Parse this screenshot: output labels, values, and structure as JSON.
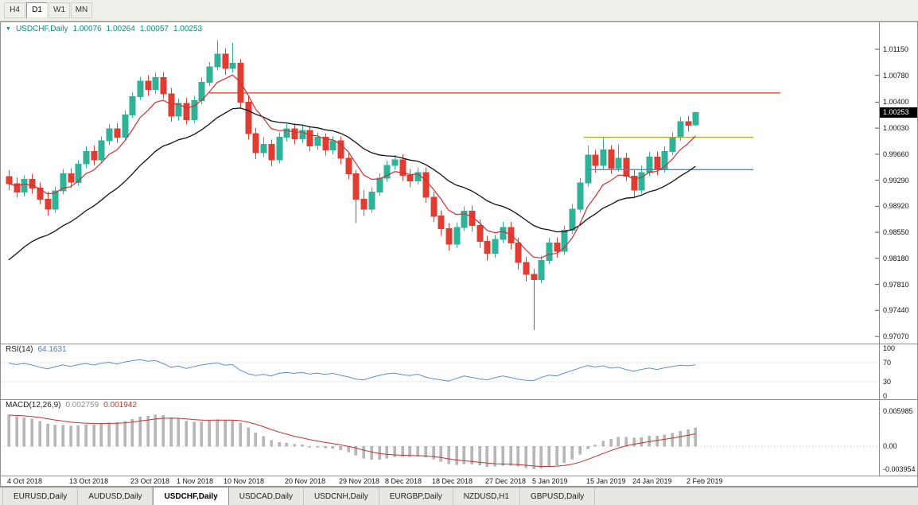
{
  "toolbar": {
    "timeframes": [
      "H4",
      "D1",
      "W1",
      "MN"
    ],
    "active": "D1"
  },
  "chart_header": {
    "dropdown_icon": "▼",
    "symbol": "USDCHF,Daily",
    "open": "1.00076",
    "high": "1.00264",
    "low": "1.00057",
    "close": "1.00253"
  },
  "symbol_tabs": [
    {
      "label": "EURUSD,Daily",
      "active": false
    },
    {
      "label": "AUDUSD,Daily",
      "active": false
    },
    {
      "label": "USDCHF,Daily",
      "active": true
    },
    {
      "label": "USDCAD,Daily",
      "active": false
    },
    {
      "label": "USDCNH,Daily",
      "active": false
    },
    {
      "label": "EURGBP,Daily",
      "active": false
    },
    {
      "label": "NZDUSD,H1",
      "active": false
    },
    {
      "label": "GBPUSD,Daily",
      "active": false
    }
  ],
  "colors": {
    "bull": "#2eb398",
    "bear": "#e03c31",
    "ma_fast": "#d03030",
    "ma_slow": "#101018",
    "rsi_line": "#5b8fc9",
    "macd_hist": "#b8b8b8",
    "macd_signal": "#c23232",
    "price_tag_bg": "#000000"
  },
  "chart_data": {
    "type": "candlestick",
    "symbol": "USDCHF",
    "timeframe": "Daily",
    "current_ohlc": {
      "open": 1.00076,
      "high": 1.00264,
      "low": 1.00057,
      "close": 1.00253
    },
    "current_price": "1.00253",
    "y_axis_range": [
      0.9707,
      1.0115
    ],
    "price_ticks": [
      "1.01150",
      "1.00780",
      "1.00400",
      "1.00030",
      "0.99660",
      "0.99290",
      "0.98920",
      "0.98550",
      "0.98180",
      "0.97810",
      "0.97440",
      "0.97070"
    ],
    "date_ticks": [
      {
        "label": "4 Oct 2018",
        "bar": 0
      },
      {
        "label": "13 Oct 2018",
        "bar": 8
      },
      {
        "label": "23 Oct 2018",
        "bar": 16
      },
      {
        "label": "1 Nov 2018",
        "bar": 22
      },
      {
        "label": "10 Nov 2018",
        "bar": 28
      },
      {
        "label": "20 Nov 2018",
        "bar": 36
      },
      {
        "label": "29 Nov 2018",
        "bar": 43
      },
      {
        "label": "8 Dec 2018",
        "bar": 49
      },
      {
        "label": "18 Dec 2018",
        "bar": 55
      },
      {
        "label": "27 Dec 2018",
        "bar": 62
      },
      {
        "label": "5 Jan 2019",
        "bar": 68
      },
      {
        "label": "15 Jan 2019",
        "bar": 75
      },
      {
        "label": "24 Jan 2019",
        "bar": 81
      },
      {
        "label": "2 Feb 2019",
        "bar": 88
      }
    ],
    "hlines": [
      {
        "name": "resistance-line-red",
        "price": 1.0053,
        "color": "#e0372c",
        "from_bar": 26,
        "to_bar": 100
      },
      {
        "name": "minor-resistance-line-olive",
        "price": 0.999,
        "color": "#a7ab25",
        "from_bar": 74.5,
        "to_bar": 96.5
      },
      {
        "name": "support-line-blue",
        "price": 0.9944,
        "color": "#3e8ed0",
        "from_bar": 75,
        "to_bar": 96.5
      }
    ],
    "moving_averages": [
      {
        "name": "ma-fast-red",
        "period": 7,
        "color": "#d03030"
      },
      {
        "name": "ma-slow-black",
        "period": 21,
        "color": "#101018"
      }
    ],
    "rsi": {
      "label": "RSI(14)",
      "value": "64.1631",
      "period": 14,
      "axis_ticks": [
        "100",
        "70",
        "30",
        "0"
      ],
      "dotted_levels": [
        70,
        30
      ]
    },
    "macd": {
      "label": "MACD(12,26,9)",
      "main_value": "0.002759",
      "signal_value": "0.001942",
      "fast": 12,
      "slow": 26,
      "signal": 9,
      "axis_ticks": [
        "0.005985",
        "0.00",
        "-0.003954"
      ]
    },
    "candles": [
      [
        0.9934,
        0.9943,
        0.9915,
        0.9924
      ],
      [
        0.9924,
        0.9933,
        0.9904,
        0.9912
      ],
      [
        0.9912,
        0.9936,
        0.9906,
        0.993
      ],
      [
        0.993,
        0.9938,
        0.991,
        0.9918
      ],
      [
        0.9918,
        0.9926,
        0.9895,
        0.9902
      ],
      [
        0.9902,
        0.9913,
        0.9879,
        0.9888
      ],
      [
        0.9888,
        0.992,
        0.9883,
        0.9914
      ],
      [
        0.9914,
        0.9945,
        0.9909,
        0.9938
      ],
      [
        0.9938,
        0.9946,
        0.9918,
        0.9926
      ],
      [
        0.9926,
        0.9958,
        0.9921,
        0.9952
      ],
      [
        0.9952,
        0.9977,
        0.9946,
        0.997
      ],
      [
        0.997,
        0.9978,
        0.995,
        0.9958
      ],
      [
        0.9958,
        0.9991,
        0.9953,
        0.9985
      ],
      [
        0.9985,
        1.0009,
        0.9979,
        1.0002
      ],
      [
        1.0002,
        1.001,
        0.9982,
        0.999
      ],
      [
        0.999,
        1.0028,
        0.9985,
        1.0022
      ],
      [
        1.0022,
        1.0054,
        1.0017,
        1.0048
      ],
      [
        1.0048,
        1.0076,
        1.0043,
        1.007
      ],
      [
        1.007,
        1.0078,
        1.0049,
        1.0058
      ],
      [
        1.0058,
        1.0082,
        1.0052,
        1.0075
      ],
      [
        1.0075,
        1.0083,
        1.0045,
        1.0052
      ],
      [
        1.0052,
        1.006,
        1.0012,
        1.002
      ],
      [
        1.002,
        1.0045,
        1.0014,
        1.0038
      ],
      [
        1.0038,
        1.0046,
        1.0008,
        1.0015
      ],
      [
        1.0015,
        1.0049,
        1.001,
        1.0042
      ],
      [
        1.0042,
        1.0075,
        1.0037,
        1.0068
      ],
      [
        1.0068,
        1.0097,
        1.0063,
        1.009
      ],
      [
        1.009,
        1.0128,
        1.0085,
        1.0108
      ],
      [
        1.0108,
        1.0116,
        1.0079,
        1.0088
      ],
      [
        1.0088,
        1.0124,
        1.0082,
        1.0095
      ],
      [
        1.0095,
        1.0101,
        1.0031,
        1.004
      ],
      [
        1.004,
        1.0048,
        0.9987,
        0.9995
      ],
      [
        0.9995,
        1.0003,
        0.9959,
        0.9968
      ],
      [
        0.9968,
        0.999,
        0.9962,
        0.998
      ],
      [
        0.998,
        0.9987,
        0.9949,
        0.9958
      ],
      [
        0.9958,
        0.9997,
        0.9953,
        0.999
      ],
      [
        0.999,
        1.0009,
        0.9984,
        1.0002
      ],
      [
        1.0002,
        1.001,
        0.998,
        0.9988
      ],
      [
        0.9988,
        1.0007,
        0.9982,
        1.0
      ],
      [
        1.0,
        1.0006,
        0.997,
        0.9978
      ],
      [
        0.9978,
        0.9997,
        0.9972,
        0.999
      ],
      [
        0.999,
        0.9996,
        0.9964,
        0.9972
      ],
      [
        0.9972,
        0.9992,
        0.9966,
        0.9985
      ],
      [
        0.9985,
        0.9991,
        0.9952,
        0.996
      ],
      [
        0.996,
        0.9968,
        0.993,
        0.9938
      ],
      [
        0.9938,
        0.9944,
        0.9868,
        0.9902
      ],
      [
        0.9902,
        0.9915,
        0.9879,
        0.9888
      ],
      [
        0.9888,
        0.9919,
        0.9883,
        0.9912
      ],
      [
        0.9912,
        0.9939,
        0.9907,
        0.9932
      ],
      [
        0.9932,
        0.9957,
        0.9927,
        0.995
      ],
      [
        0.995,
        0.9965,
        0.9944,
        0.9958
      ],
      [
        0.9958,
        0.9966,
        0.9928,
        0.9936
      ],
      [
        0.9936,
        0.9945,
        0.9919,
        0.9928
      ],
      [
        0.9928,
        0.9947,
        0.9923,
        0.994
      ],
      [
        0.994,
        0.9947,
        0.9897,
        0.9905
      ],
      [
        0.9905,
        0.9913,
        0.987,
        0.9878
      ],
      [
        0.9878,
        0.9886,
        0.985,
        0.986
      ],
      [
        0.986,
        0.9868,
        0.9829,
        0.9838
      ],
      [
        0.9838,
        0.9869,
        0.9833,
        0.9862
      ],
      [
        0.9862,
        0.9892,
        0.9857,
        0.9885
      ],
      [
        0.9885,
        0.9893,
        0.9856,
        0.9865
      ],
      [
        0.9865,
        0.9873,
        0.9833,
        0.9842
      ],
      [
        0.9842,
        0.985,
        0.9815,
        0.9825
      ],
      [
        0.9825,
        0.9852,
        0.9819,
        0.9845
      ],
      [
        0.9845,
        0.987,
        0.984,
        0.9862
      ],
      [
        0.9862,
        0.987,
        0.9831,
        0.984
      ],
      [
        0.984,
        0.9847,
        0.9802,
        0.9812
      ],
      [
        0.9812,
        0.982,
        0.9785,
        0.9795
      ],
      [
        0.9795,
        0.9803,
        0.9716,
        0.9788
      ],
      [
        0.9788,
        0.9822,
        0.9783,
        0.9815
      ],
      [
        0.9815,
        0.9847,
        0.981,
        0.984
      ],
      [
        0.984,
        0.9848,
        0.9819,
        0.9828
      ],
      [
        0.9828,
        0.9865,
        0.9823,
        0.9858
      ],
      [
        0.9858,
        0.9895,
        0.9853,
        0.9888
      ],
      [
        0.9888,
        0.9932,
        0.9883,
        0.9925
      ],
      [
        0.9925,
        0.9978,
        0.992,
        0.9965
      ],
      [
        0.9965,
        0.9972,
        0.994,
        0.995
      ],
      [
        0.995,
        0.9989,
        0.9945,
        0.9972
      ],
      [
        0.9972,
        0.9979,
        0.9938,
        0.9946
      ],
      [
        0.9946,
        0.998,
        0.9941,
        0.996
      ],
      [
        0.996,
        0.9968,
        0.9928,
        0.9935
      ],
      [
        0.9935,
        0.9943,
        0.9906,
        0.9915
      ],
      [
        0.9915,
        0.995,
        0.991,
        0.994
      ],
      [
        0.994,
        0.9969,
        0.9935,
        0.9962
      ],
      [
        0.9962,
        0.997,
        0.9936,
        0.9945
      ],
      [
        0.9945,
        0.9977,
        0.994,
        0.997
      ],
      [
        0.997,
        0.9997,
        0.9965,
        0.999
      ],
      [
        0.999,
        1.0019,
        0.9985,
        1.0012
      ],
      [
        1.0012,
        1.002,
        0.9998,
        1.0007
      ],
      [
        1.00076,
        1.00264,
        1.00057,
        1.00253
      ]
    ]
  }
}
